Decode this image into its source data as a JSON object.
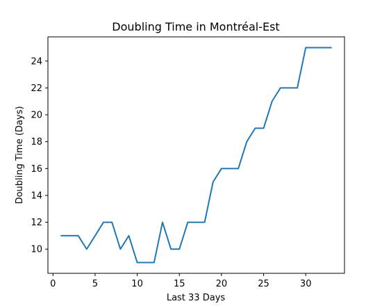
{
  "chart_data": {
    "type": "line",
    "title": "Doubling Time in  Montréal-Est",
    "xlabel": "Last 33 Days",
    "ylabel": "Doubling Time (Days)",
    "xlim": [
      -0.6,
      34.6
    ],
    "ylim": [
      8.2,
      25.8
    ],
    "x_ticks": [
      0,
      5,
      10,
      15,
      20,
      25,
      30
    ],
    "y_ticks": [
      10,
      12,
      14,
      16,
      18,
      20,
      22,
      24
    ],
    "grid": false,
    "series": [
      {
        "color": "#1f77b4",
        "x": [
          1,
          2,
          3,
          4,
          5,
          6,
          7,
          8,
          9,
          10,
          11,
          12,
          13,
          14,
          15,
          16,
          17,
          18,
          19,
          20,
          21,
          22,
          23,
          24,
          25,
          26,
          27,
          28,
          29,
          30,
          31,
          32,
          33
        ],
        "y": [
          11,
          11,
          11,
          10,
          11,
          12,
          12,
          10,
          11,
          9,
          9,
          9,
          12,
          10,
          10,
          12,
          12,
          12,
          15,
          16,
          16,
          16,
          18,
          19,
          19,
          21,
          22,
          22,
          22,
          25,
          25,
          25,
          25
        ]
      }
    ]
  }
}
